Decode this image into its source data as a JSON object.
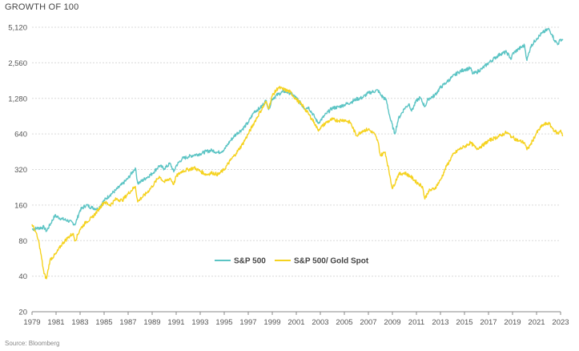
{
  "chart_title": "GROWTH OF 100",
  "source": "Source: Bloomberg",
  "chart_data": {
    "type": "line",
    "title": "GROWTH OF 100",
    "xlabel": "",
    "ylabel": "",
    "y_scale": "log2",
    "ylim": [
      20,
      5120
    ],
    "xlim": [
      1979,
      2023
    ],
    "y_ticks": [
      20,
      40,
      80,
      160,
      320,
      640,
      1280,
      2560,
      5120
    ],
    "y_tick_labels": [
      "20",
      "40",
      "80",
      "160",
      "320",
      "640",
      "1,280",
      "2,560",
      "5,120"
    ],
    "x_ticks": [
      1979,
      1981,
      1983,
      1985,
      1987,
      1989,
      1991,
      1993,
      1995,
      1997,
      1999,
      2001,
      2003,
      2005,
      2007,
      2009,
      2011,
      2013,
      2015,
      2017,
      2019,
      2021,
      2023
    ],
    "x_tick_labels": [
      "1979",
      "1981",
      "1983",
      "1985",
      "1987",
      "1989",
      "1991",
      "1993",
      "1995",
      "1997",
      "1999",
      "2001",
      "2003",
      "2005",
      "2007",
      "2009",
      "2011",
      "2013",
      "2015",
      "2017",
      "2019",
      "2021",
      "2023"
    ],
    "grid": "horizontal",
    "legend_position": "bottom-center",
    "series": [
      {
        "name": "S&P 500",
        "color": "#5bc4c4",
        "points": [
          [
            1979.0,
            100
          ],
          [
            1979.5,
            102
          ],
          [
            1980.0,
            104
          ],
          [
            1980.2,
            96
          ],
          [
            1980.9,
            130
          ],
          [
            1981.5,
            122
          ],
          [
            1982.0,
            118
          ],
          [
            1982.6,
            110
          ],
          [
            1983.0,
            145
          ],
          [
            1983.5,
            160
          ],
          [
            1984.0,
            152
          ],
          [
            1984.5,
            148
          ],
          [
            1985.0,
            175
          ],
          [
            1985.5,
            195
          ],
          [
            1986.0,
            215
          ],
          [
            1986.5,
            240
          ],
          [
            1987.0,
            270
          ],
          [
            1987.6,
            330
          ],
          [
            1987.8,
            245
          ],
          [
            1988.0,
            250
          ],
          [
            1988.5,
            272
          ],
          [
            1989.0,
            295
          ],
          [
            1989.6,
            345
          ],
          [
            1990.0,
            325
          ],
          [
            1990.5,
            360
          ],
          [
            1990.8,
            305
          ],
          [
            1991.0,
            345
          ],
          [
            1991.5,
            395
          ],
          [
            1992.0,
            410
          ],
          [
            1992.5,
            425
          ],
          [
            1993.0,
            435
          ],
          [
            1993.5,
            455
          ],
          [
            1994.0,
            465
          ],
          [
            1994.5,
            445
          ],
          [
            1995.0,
            470
          ],
          [
            1995.5,
            560
          ],
          [
            1996.0,
            640
          ],
          [
            1996.5,
            700
          ],
          [
            1997.0,
            800
          ],
          [
            1997.5,
            990
          ],
          [
            1998.0,
            1060
          ],
          [
            1998.5,
            1230
          ],
          [
            1998.7,
            1030
          ],
          [
            1999.0,
            1270
          ],
          [
            1999.5,
            1390
          ],
          [
            2000.0,
            1470
          ],
          [
            2000.5,
            1420
          ],
          [
            2001.0,
            1290
          ],
          [
            2001.7,
            1050
          ],
          [
            2002.0,
            1080
          ],
          [
            2002.5,
            900
          ],
          [
            2002.8,
            790
          ],
          [
            2003.0,
            830
          ],
          [
            2003.5,
            950
          ],
          [
            2004.0,
            1060
          ],
          [
            2004.5,
            1080
          ],
          [
            2005.0,
            1130
          ],
          [
            2005.5,
            1180
          ],
          [
            2006.0,
            1260
          ],
          [
            2006.5,
            1300
          ],
          [
            2007.0,
            1420
          ],
          [
            2007.8,
            1500
          ],
          [
            2008.0,
            1380
          ],
          [
            2008.5,
            1230
          ],
          [
            2008.8,
            880
          ],
          [
            2009.2,
            640
          ],
          [
            2009.5,
            860
          ],
          [
            2010.0,
            1050
          ],
          [
            2010.4,
            1150
          ],
          [
            2010.6,
            1000
          ],
          [
            2011.0,
            1220
          ],
          [
            2011.3,
            1300
          ],
          [
            2011.7,
            1090
          ],
          [
            2012.0,
            1270
          ],
          [
            2012.5,
            1350
          ],
          [
            2013.0,
            1580
          ],
          [
            2013.5,
            1750
          ],
          [
            2014.0,
            1950
          ],
          [
            2014.5,
            2130
          ],
          [
            2015.0,
            2250
          ],
          [
            2015.5,
            2300
          ],
          [
            2015.7,
            2060
          ],
          [
            2016.0,
            2130
          ],
          [
            2016.5,
            2300
          ],
          [
            2017.0,
            2550
          ],
          [
            2017.5,
            2800
          ],
          [
            2018.0,
            3050
          ],
          [
            2018.5,
            3150
          ],
          [
            2018.9,
            2750
          ],
          [
            2019.0,
            3050
          ],
          [
            2019.5,
            3350
          ],
          [
            2020.0,
            3600
          ],
          [
            2020.2,
            2680
          ],
          [
            2020.5,
            3500
          ],
          [
            2021.0,
            4100
          ],
          [
            2021.5,
            4600
          ],
          [
            2022.0,
            4950
          ],
          [
            2022.3,
            4450
          ],
          [
            2022.5,
            3950
          ],
          [
            2022.8,
            3700
          ],
          [
            2023.0,
            4050
          ],
          [
            2023.2,
            4000
          ]
        ]
      },
      {
        "name": "S&P 500/ Gold Spot",
        "color": "#f5d21f",
        "points": [
          [
            1979.0,
            110
          ],
          [
            1979.3,
            95
          ],
          [
            1979.6,
            75
          ],
          [
            1980.0,
            42
          ],
          [
            1980.2,
            38
          ],
          [
            1980.5,
            55
          ],
          [
            1981.0,
            62
          ],
          [
            1981.5,
            75
          ],
          [
            1982.0,
            85
          ],
          [
            1982.4,
            92
          ],
          [
            1982.6,
            80
          ],
          [
            1983.0,
            100
          ],
          [
            1983.5,
            115
          ],
          [
            1984.0,
            125
          ],
          [
            1984.5,
            145
          ],
          [
            1985.0,
            170
          ],
          [
            1985.5,
            160
          ],
          [
            1986.0,
            180
          ],
          [
            1986.5,
            175
          ],
          [
            1987.0,
            200
          ],
          [
            1987.6,
            230
          ],
          [
            1987.8,
            170
          ],
          [
            1988.0,
            180
          ],
          [
            1988.5,
            200
          ],
          [
            1989.0,
            230
          ],
          [
            1989.6,
            280
          ],
          [
            1990.0,
            250
          ],
          [
            1990.5,
            270
          ],
          [
            1990.8,
            240
          ],
          [
            1991.0,
            280
          ],
          [
            1991.5,
            310
          ],
          [
            1992.0,
            320
          ],
          [
            1992.5,
            330
          ],
          [
            1993.0,
            310
          ],
          [
            1993.5,
            290
          ],
          [
            1994.0,
            300
          ],
          [
            1994.5,
            290
          ],
          [
            1995.0,
            320
          ],
          [
            1995.5,
            380
          ],
          [
            1996.0,
            440
          ],
          [
            1996.5,
            520
          ],
          [
            1997.0,
            640
          ],
          [
            1997.5,
            800
          ],
          [
            1998.0,
            990
          ],
          [
            1998.5,
            1200
          ],
          [
            1998.7,
            1050
          ],
          [
            1999.0,
            1350
          ],
          [
            1999.5,
            1580
          ],
          [
            2000.0,
            1520
          ],
          [
            2000.5,
            1450
          ],
          [
            2001.0,
            1250
          ],
          [
            2001.5,
            1120
          ],
          [
            2002.0,
            950
          ],
          [
            2002.5,
            800
          ],
          [
            2002.8,
            690
          ],
          [
            2003.0,
            720
          ],
          [
            2003.5,
            800
          ],
          [
            2004.0,
            850
          ],
          [
            2004.5,
            830
          ],
          [
            2005.0,
            840
          ],
          [
            2005.5,
            800
          ],
          [
            2006.0,
            620
          ],
          [
            2006.5,
            680
          ],
          [
            2007.0,
            700
          ],
          [
            2007.5,
            640
          ],
          [
            2007.8,
            550
          ],
          [
            2008.0,
            420
          ],
          [
            2008.4,
            450
          ],
          [
            2008.8,
            280
          ],
          [
            2009.0,
            220
          ],
          [
            2009.5,
            290
          ],
          [
            2010.0,
            300
          ],
          [
            2010.5,
            280
          ],
          [
            2011.0,
            250
          ],
          [
            2011.5,
            230
          ],
          [
            2011.7,
            180
          ],
          [
            2012.0,
            210
          ],
          [
            2012.5,
            220
          ],
          [
            2013.0,
            260
          ],
          [
            2013.5,
            340
          ],
          [
            2014.0,
            420
          ],
          [
            2014.5,
            470
          ],
          [
            2015.0,
            500
          ],
          [
            2015.5,
            540
          ],
          [
            2016.0,
            480
          ],
          [
            2016.5,
            510
          ],
          [
            2017.0,
            560
          ],
          [
            2017.5,
            590
          ],
          [
            2018.0,
            620
          ],
          [
            2018.5,
            660
          ],
          [
            2018.9,
            610
          ],
          [
            2019.0,
            600
          ],
          [
            2019.5,
            560
          ],
          [
            2020.0,
            540
          ],
          [
            2020.2,
            470
          ],
          [
            2020.5,
            520
          ],
          [
            2021.0,
            650
          ],
          [
            2021.5,
            760
          ],
          [
            2022.0,
            790
          ],
          [
            2022.3,
            720
          ],
          [
            2022.5,
            680
          ],
          [
            2022.8,
            640
          ],
          [
            2023.0,
            690
          ],
          [
            2023.2,
            620
          ]
        ]
      }
    ]
  }
}
